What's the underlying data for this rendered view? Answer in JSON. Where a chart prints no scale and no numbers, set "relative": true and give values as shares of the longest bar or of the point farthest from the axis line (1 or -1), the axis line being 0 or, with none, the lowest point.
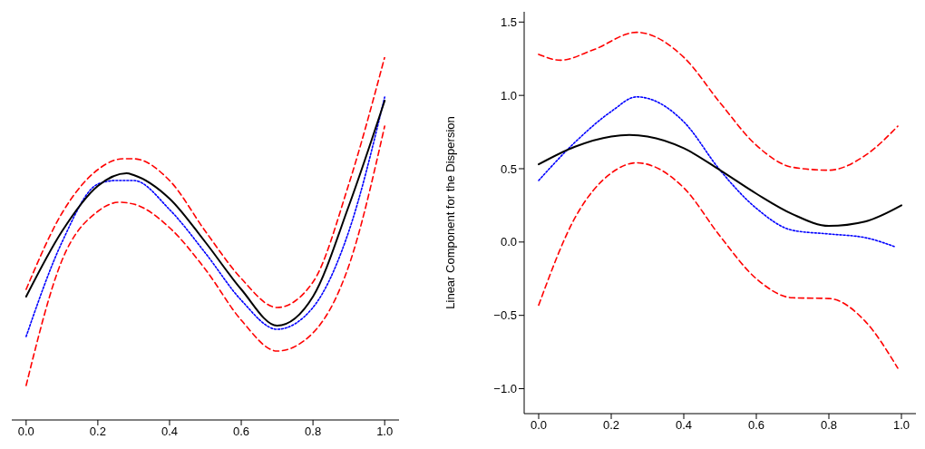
{
  "chart_data": [
    {
      "type": "line",
      "relative": true,
      "xlim": [
        -0.04,
        1.04
      ],
      "xticks": [
        {
          "value": 0,
          "label": "0.0"
        },
        {
          "value": 0.2,
          "label": "0.2"
        },
        {
          "value": 0.4,
          "label": "0.4"
        },
        {
          "value": 0.6,
          "label": "0.6"
        },
        {
          "value": 0.8,
          "label": "0.8"
        },
        {
          "value": 1,
          "label": "1.0"
        }
      ],
      "series": [
        {
          "color": "#ff0000",
          "line_style": "dashed",
          "x": [
            0,
            0.1,
            0.2,
            0.27,
            0.3,
            0.4,
            0.5,
            0.6,
            0.7,
            0.8,
            0.9,
            1.0
          ],
          "values": [
            0.36,
            0.57,
            0.69,
            0.72,
            0.72,
            0.66,
            0.52,
            0.39,
            0.31,
            0.38,
            0.65,
            1.0
          ]
        },
        {
          "color": "#ff0000",
          "line_style": "dashed",
          "x": [
            0,
            0.1,
            0.2,
            0.26,
            0.3,
            0.4,
            0.5,
            0.6,
            0.7,
            0.8,
            0.9,
            1.0
          ],
          "values": [
            0.095,
            0.44,
            0.575,
            0.6,
            0.595,
            0.53,
            0.415,
            0.275,
            0.19,
            0.24,
            0.425,
            0.81
          ]
        },
        {
          "color": "#0000ff",
          "line_style": "dotted",
          "x": [
            0,
            0.1,
            0.2,
            0.25,
            0.3,
            0.4,
            0.5,
            0.6,
            0.7,
            0.8,
            0.9,
            1.0
          ],
          "values": [
            0.23,
            0.49,
            0.65,
            0.66,
            0.66,
            0.58,
            0.46,
            0.33,
            0.25,
            0.31,
            0.52,
            0.89
          ]
        },
        {
          "color": "#000000",
          "line_style": "solid",
          "x": [
            0,
            0.1,
            0.2,
            0.28,
            0.3,
            0.4,
            0.5,
            0.6,
            0.7,
            0.8,
            0.9,
            1.0
          ],
          "values": [
            0.34,
            0.52,
            0.645,
            0.68,
            0.675,
            0.61,
            0.49,
            0.36,
            0.26,
            0.34,
            0.59,
            0.88
          ]
        }
      ]
    },
    {
      "type": "line",
      "ylabel": "Linear Component for the Dispersion",
      "xlim": [
        -0.04,
        1.04
      ],
      "ylim": [
        -1.17,
        1.57
      ],
      "xticks": [
        {
          "value": 0,
          "label": "0.0"
        },
        {
          "value": 0.2,
          "label": "0.2"
        },
        {
          "value": 0.4,
          "label": "0.4"
        },
        {
          "value": 0.6,
          "label": "0.6"
        },
        {
          "value": 0.8,
          "label": "0.8"
        },
        {
          "value": 1,
          "label": "1.0"
        }
      ],
      "yticks": [
        {
          "value": -1,
          "label": "−1.0"
        },
        {
          "value": -0.5,
          "label": "−0.5"
        },
        {
          "value": 0,
          "label": "0.0"
        },
        {
          "value": 0.5,
          "label": "0.5"
        },
        {
          "value": 1,
          "label": "1.0"
        },
        {
          "value": 1.5,
          "label": "1.5"
        }
      ],
      "series": [
        {
          "color": "#ff0000",
          "line_style": "dashed",
          "x": [
            0,
            0.06,
            0.15,
            0.27,
            0.4,
            0.5,
            0.6,
            0.7,
            0.8,
            0.9,
            0.99
          ],
          "values": [
            1.28,
            1.24,
            1.31,
            1.43,
            1.26,
            0.95,
            0.66,
            0.51,
            0.49,
            0.59,
            0.79
          ]
        },
        {
          "color": "#ff0000",
          "line_style": "dashed",
          "x": [
            0,
            0.1,
            0.2,
            0.27,
            0.4,
            0.5,
            0.6,
            0.7,
            0.8,
            0.9,
            0.99
          ],
          "values": [
            -0.43,
            0.165,
            0.47,
            0.54,
            0.37,
            0.04,
            -0.25,
            -0.38,
            -0.385,
            -0.54,
            -0.86
          ]
        },
        {
          "color": "#0000ff",
          "line_style": "dotted",
          "x": [
            0,
            0.1,
            0.2,
            0.27,
            0.3,
            0.4,
            0.5,
            0.6,
            0.7,
            0.8,
            0.9,
            0.98
          ],
          "values": [
            0.42,
            0.68,
            0.89,
            0.99,
            0.98,
            0.82,
            0.49,
            0.23,
            0.08,
            0.055,
            0.03,
            -0.03
          ]
        },
        {
          "color": "#000000",
          "line_style": "solid",
          "x": [
            0,
            0.1,
            0.2,
            0.25,
            0.3,
            0.4,
            0.5,
            0.6,
            0.7,
            0.8,
            0.9,
            1.0
          ],
          "values": [
            0.53,
            0.65,
            0.72,
            0.73,
            0.72,
            0.64,
            0.49,
            0.33,
            0.19,
            0.11,
            0.14,
            0.25
          ]
        }
      ]
    }
  ]
}
